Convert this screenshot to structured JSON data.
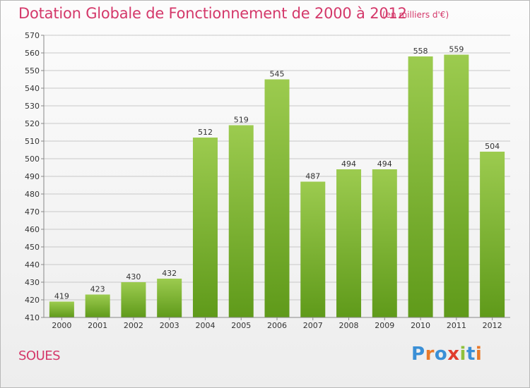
{
  "header": {
    "title": "Dotation Globale de Fonctionnement de 2000 à 2012",
    "subtitle": "(en milliers d'€)"
  },
  "footer": {
    "place": "SOUES",
    "logo_text": "Proxiti",
    "logo_colors": [
      "#3a8fd6",
      "#e8792a",
      "#3a8fd6",
      "#e03c2e",
      "#8fc13c",
      "#3a8fd6",
      "#e8792a"
    ]
  },
  "colors": {
    "bar_top": "#9ccb4f",
    "bar_bottom": "#5f9a1a",
    "grid": "#c8c8c8",
    "title": "#d4386a"
  },
  "chart_data": {
    "type": "bar",
    "title": "Dotation Globale de Fonctionnement de 2000 à 2012",
    "subtitle": "(en milliers d'€)",
    "xlabel": "",
    "ylabel": "",
    "categories": [
      "2000",
      "2001",
      "2002",
      "2003",
      "2004",
      "2005",
      "2006",
      "2007",
      "2008",
      "2009",
      "2010",
      "2011",
      "2012"
    ],
    "values": [
      419,
      423,
      430,
      432,
      512,
      519,
      545,
      487,
      494,
      494,
      558,
      559,
      504
    ],
    "ylim": [
      410,
      570
    ],
    "yticks": [
      410,
      420,
      430,
      440,
      450,
      460,
      470,
      480,
      490,
      500,
      510,
      520,
      530,
      540,
      550,
      560,
      570
    ],
    "grid": true,
    "data_labels": true
  }
}
